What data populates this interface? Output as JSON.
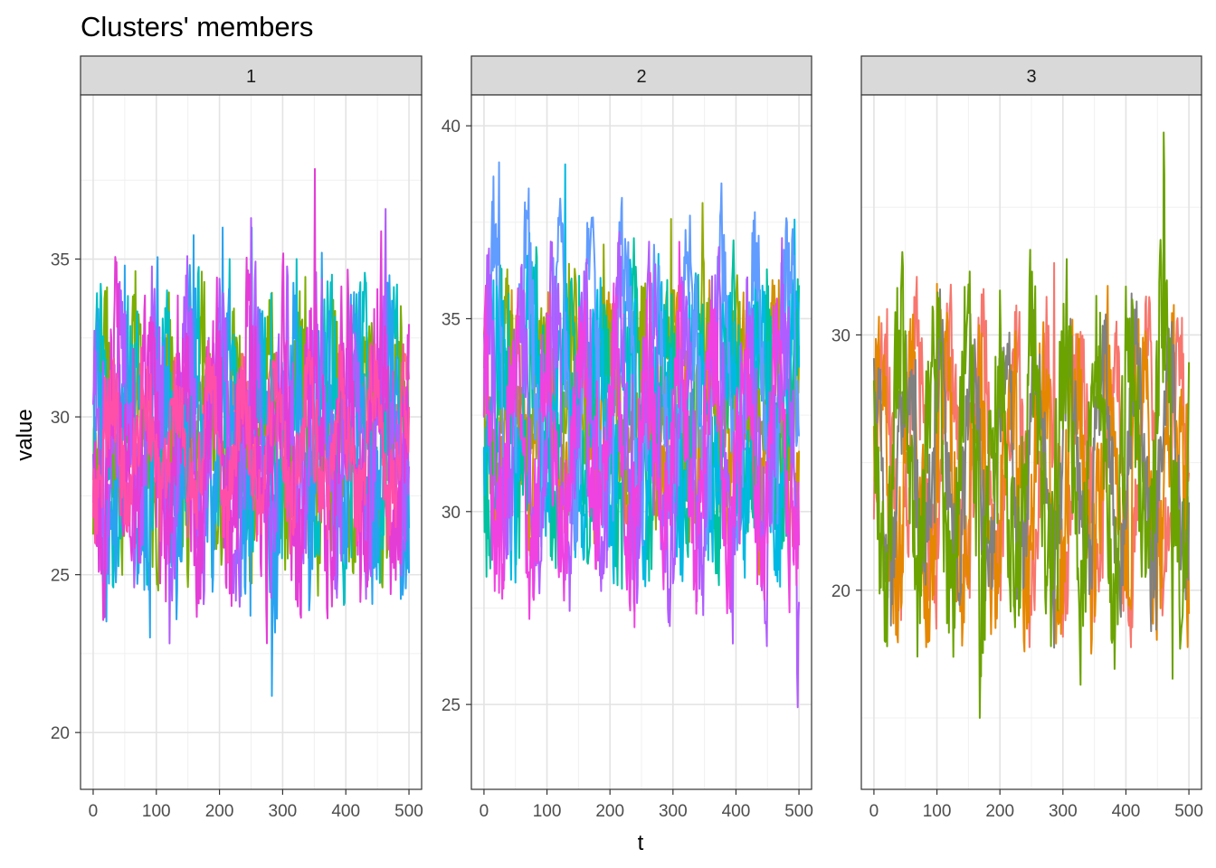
{
  "chart_data": {
    "type": "line",
    "title": "Clusters' members",
    "xlabel": "t",
    "ylabel": "value",
    "grid": true,
    "facets": [
      {
        "strip_label": "1",
        "xlim": [
          -20,
          520
        ],
        "ylim": [
          18.2,
          40.2
        ],
        "x_ticks": [
          0,
          100,
          200,
          300,
          400,
          500
        ],
        "y_ticks": [
          20,
          25,
          30,
          35
        ],
        "series": [
          {
            "color": "#F8766D",
            "base": 30,
            "amp": 1.5,
            "noise": 0.8,
            "seed": 11,
            "values_summary": {
              "t_range": [
                0,
                500
              ],
              "approx_min": 28,
              "approx_max": 32
            }
          },
          {
            "color": "#7CAE00",
            "base": 29.5,
            "amp": 2.5,
            "noise": 2.2,
            "seed": 12,
            "values_summary": {
              "t_range": [
                0,
                500
              ],
              "approx_min": 24,
              "approx_max": 35
            }
          },
          {
            "color": "#00BFC4",
            "base": 29.5,
            "amp": 2.5,
            "noise": 2.4,
            "seed": 13,
            "values_summary": {
              "t_range": [
                0,
                500
              ],
              "approx_min": 22,
              "approx_max": 35
            }
          },
          {
            "color": "#29A3F0",
            "base": 29,
            "amp": 3,
            "noise": 2.6,
            "seed": 14,
            "values_summary": {
              "t_range": [
                0,
                500
              ],
              "approx_min": 20.6,
              "approx_max": 36
            }
          },
          {
            "color": "#B15CFF",
            "base": 29.5,
            "amp": 3,
            "noise": 2.4,
            "seed": 15,
            "values_summary": {
              "t_range": [
                0,
                500
              ],
              "approx_min": 21,
              "approx_max": 37
            }
          },
          {
            "color": "#E43DD6",
            "base": 29,
            "amp": 3,
            "noise": 2.8,
            "seed": 16,
            "values_summary": {
              "t_range": [
                0,
                500
              ],
              "approx_min": 19.1,
              "approx_max": 38.8
            }
          },
          {
            "color": "#FF4FA8",
            "base": 29,
            "amp": 2,
            "noise": 1.6,
            "seed": 17,
            "values_summary": {
              "t_range": [
                0,
                500
              ],
              "approx_min": 25,
              "approx_max": 33
            }
          }
        ]
      },
      {
        "strip_label": "2",
        "xlim": [
          -20,
          520
        ],
        "ylim": [
          22.8,
          40.8
        ],
        "x_ticks": [
          0,
          100,
          200,
          300,
          400,
          500
        ],
        "y_ticks": [
          25,
          30,
          35,
          40
        ],
        "series": [
          {
            "color": "#D39200",
            "base": 32.3,
            "amp": 2,
            "noise": 1.6,
            "seed": 21,
            "values_summary": {
              "t_range": [
                0,
                500
              ],
              "approx_min": 26.7,
              "approx_max": 36
            }
          },
          {
            "color": "#93AA00",
            "base": 33,
            "amp": 1.8,
            "noise": 1.4,
            "seed": 22,
            "values_summary": {
              "t_range": [
                0,
                500
              ],
              "approx_min": 29,
              "approx_max": 38
            }
          },
          {
            "color": "#00C19F",
            "base": 32.5,
            "amp": 2.5,
            "noise": 1.8,
            "seed": 23,
            "values_summary": {
              "t_range": [
                0,
                500
              ],
              "approx_min": 28,
              "approx_max": 38
            }
          },
          {
            "color": "#00B9E3",
            "base": 32.5,
            "amp": 2.5,
            "noise": 1.8,
            "seed": 24,
            "values_summary": {
              "t_range": [
                0,
                500
              ],
              "approx_min": 27.5,
              "approx_max": 39
            }
          },
          {
            "color": "#619CFF",
            "base": 33.5,
            "amp": 3,
            "noise": 1.6,
            "seed": 25,
            "values_summary": {
              "t_range": [
                0,
                500
              ],
              "approx_min": 29,
              "approx_max": 39.5
            }
          },
          {
            "color": "#B15CFF",
            "base": 32,
            "amp": 3,
            "noise": 2,
            "seed": 26,
            "values_summary": {
              "t_range": [
                0,
                500
              ],
              "approx_min": 23.8,
              "approx_max": 39.9
            }
          },
          {
            "color": "#F042E0",
            "base": 31.5,
            "amp": 2.5,
            "noise": 1.8,
            "seed": 27,
            "values_summary": {
              "t_range": [
                0,
                500
              ],
              "approx_min": 27,
              "approx_max": 38
            }
          }
        ]
      },
      {
        "strip_label": "3",
        "xlim": [
          -20,
          520
        ],
        "ylim": [
          12.2,
          39.4
        ],
        "x_ticks": [
          0,
          100,
          200,
          300,
          400,
          500
        ],
        "y_ticks": [
          20,
          30
        ],
        "series": [
          {
            "color": "#F8766D",
            "base": 25,
            "amp": 4,
            "noise": 2.6,
            "seed": 31,
            "values_summary": {
              "t_range": [
                0,
                500
              ],
              "approx_min": 15,
              "approx_max": 34
            }
          },
          {
            "color": "#E58700",
            "base": 24.5,
            "amp": 4,
            "noise": 2.8,
            "seed": 32,
            "values_summary": {
              "t_range": [
                0,
                500
              ],
              "approx_min": 13.5,
              "approx_max": 32
            }
          },
          {
            "color": "#808080",
            "base": 25,
            "amp": 4,
            "noise": 2.2,
            "seed": 33,
            "values_summary": {
              "t_range": [
                0,
                500
              ],
              "approx_min": 16,
              "approx_max": 33
            }
          },
          {
            "color": "#6BA300",
            "base": 25,
            "amp": 5,
            "noise": 3.2,
            "seed": 34,
            "values_summary": {
              "t_range": [
                0,
                500
              ],
              "approx_min": 13.3,
              "approx_max": 38.2
            }
          }
        ]
      }
    ]
  }
}
